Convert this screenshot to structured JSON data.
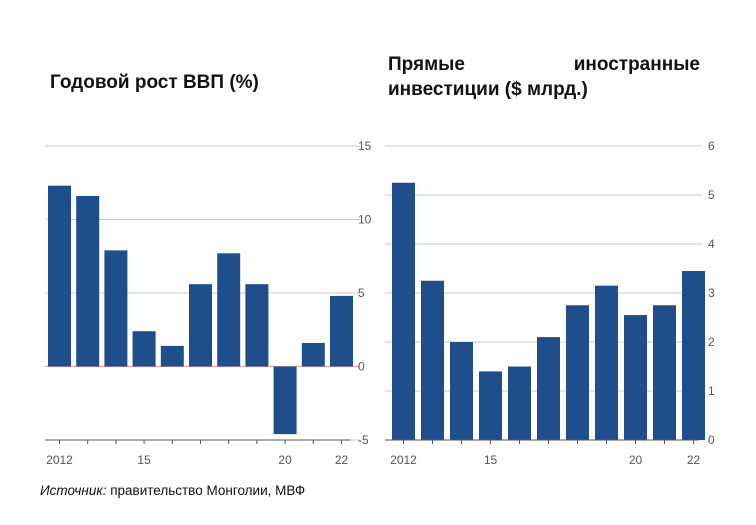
{
  "colors": {
    "bar": "#1f4e8c",
    "grid": "#c9c9c9",
    "zero": "#d9a3a3",
    "axis": "#555555"
  },
  "source": {
    "label": "Источник:",
    "text": " правительство Монголии, МВФ"
  },
  "chart_data": [
    {
      "type": "bar",
      "title": "Годовой рост ВВП (%)",
      "years": [
        2012,
        2013,
        2014,
        2015,
        2016,
        2017,
        2018,
        2019,
        2020,
        2021,
        2022
      ],
      "values": [
        12.3,
        11.6,
        7.9,
        2.4,
        1.4,
        5.6,
        7.7,
        5.6,
        -4.6,
        1.6,
        4.8
      ],
      "xticks": [
        "2012",
        "15",
        "20",
        "22"
      ],
      "xtick_years": [
        2012,
        2015,
        2020,
        2022
      ],
      "yticks": [
        "15",
        "10",
        "5",
        "0",
        "-5"
      ],
      "ytick_values": [
        15,
        10,
        5,
        0,
        -5
      ],
      "ylim": [
        -5,
        15
      ]
    },
    {
      "type": "bar",
      "title_line1_a": "Прямые",
      "title_line1_b": "иностранные",
      "title_line2": "инвестиции ($ млрд.)",
      "years": [
        2012,
        2013,
        2014,
        2015,
        2016,
        2017,
        2018,
        2019,
        2020,
        2021,
        2022
      ],
      "values": [
        5.25,
        3.25,
        2.0,
        1.4,
        1.5,
        2.1,
        2.75,
        3.15,
        2.55,
        2.75,
        3.45
      ],
      "xticks": [
        "2012",
        "15",
        "20",
        "22"
      ],
      "xtick_years": [
        2012,
        2015,
        2020,
        2022
      ],
      "yticks": [
        "6",
        "5",
        "4",
        "3",
        "2",
        "1",
        "0"
      ],
      "ytick_values": [
        6,
        5,
        4,
        3,
        2,
        1,
        0
      ],
      "ylim": [
        0,
        6
      ]
    }
  ]
}
